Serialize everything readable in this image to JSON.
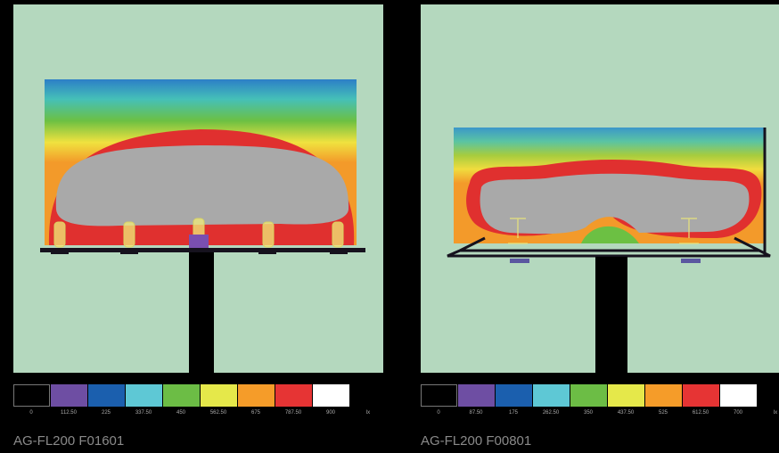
{
  "panels": [
    {
      "caption": "AG-FL200 F01601",
      "legend": {
        "colors": [
          "#000000",
          "#6e4ea3",
          "#1b5fae",
          "#5ec8d5",
          "#6cbd45",
          "#e5e84a",
          "#f59c29",
          "#e63434",
          "#ffffff"
        ],
        "ticks": [
          "0",
          "112.50",
          "225",
          "337.50",
          "450",
          "562.50",
          "675",
          "787.50",
          "900",
          "lx"
        ]
      }
    },
    {
      "caption": "AG-FL200 F00801",
      "legend": {
        "colors": [
          "#000000",
          "#6e4ea3",
          "#1b5fae",
          "#5ec8d5",
          "#6cbd45",
          "#e5e84a",
          "#f59c29",
          "#e63434",
          "#ffffff"
        ],
        "ticks": [
          "0",
          "87.50",
          "175",
          "262.50",
          "350",
          "437.50",
          "525",
          "612.50",
          "700",
          "lx"
        ]
      }
    }
  ]
}
